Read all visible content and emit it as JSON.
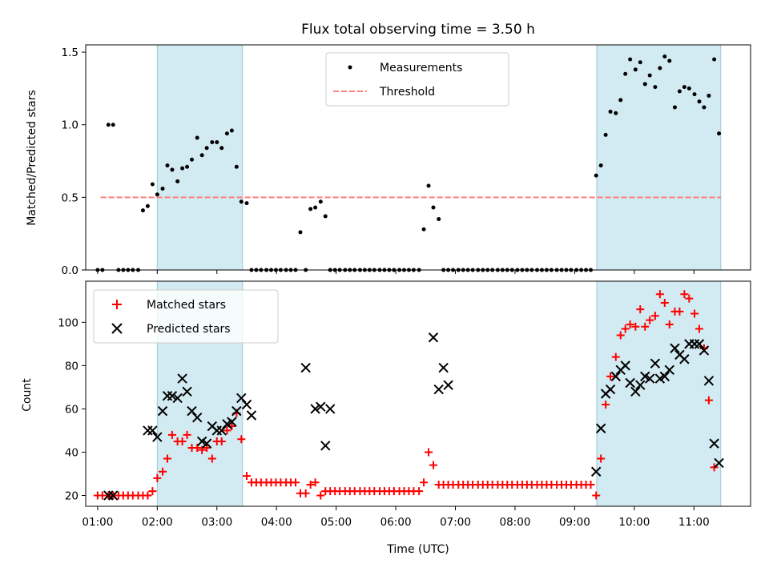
{
  "title": "Flux total observing time = 3.50 h",
  "chart_data": [
    {
      "type": "scatter",
      "name": "top",
      "ylabel": "Matched/Predicted stars",
      "xlabel": "",
      "xlim": [
        0.8,
        11.95
      ],
      "ylim": [
        0.0,
        1.55
      ],
      "yticks": [
        0.0,
        0.5,
        1.0,
        1.5
      ],
      "ytick_labels": [
        "0.0",
        "0.5",
        "1.0",
        "1.5"
      ],
      "legend_position": "top-center",
      "threshold": 0.5,
      "threshold_range": [
        1.05,
        11.45
      ],
      "shaded_regions": [
        [
          2.0,
          3.43
        ],
        [
          9.37,
          11.45
        ]
      ],
      "legend": [
        "Measurements",
        "Threshold"
      ],
      "x": [
        1.0,
        1.08,
        1.18,
        1.26,
        1.35,
        1.43,
        1.51,
        1.59,
        1.68,
        1.76,
        1.84,
        1.92,
        2.0,
        2.09,
        2.17,
        2.25,
        2.34,
        2.42,
        2.5,
        2.58,
        2.67,
        2.75,
        2.83,
        2.92,
        3.0,
        3.08,
        3.17,
        3.25,
        3.33,
        3.41,
        3.5,
        3.58,
        3.66,
        3.74,
        3.83,
        3.91,
        3.99,
        4.07,
        4.16,
        4.24,
        4.32,
        4.4,
        4.49,
        4.57,
        4.65,
        4.74,
        4.82,
        4.9,
        4.98,
        5.06,
        5.15,
        5.23,
        5.31,
        5.4,
        5.48,
        5.56,
        5.64,
        5.73,
        5.81,
        5.89,
        5.97,
        6.06,
        6.14,
        6.22,
        6.3,
        6.39,
        6.47,
        6.55,
        6.63,
        6.72,
        6.8,
        6.88,
        6.96,
        7.05,
        7.13,
        7.21,
        7.29,
        7.38,
        7.46,
        7.54,
        7.62,
        7.71,
        7.79,
        7.87,
        7.95,
        8.04,
        8.12,
        8.2,
        8.28,
        8.37,
        8.45,
        8.53,
        8.61,
        8.7,
        8.78,
        8.86,
        8.94,
        9.03,
        9.11,
        9.19,
        9.27,
        9.36,
        9.44,
        9.52,
        9.6,
        9.69,
        9.77,
        9.85,
        9.93,
        10.02,
        10.1,
        10.18,
        10.26,
        10.35,
        10.43,
        10.51,
        10.59,
        10.68,
        10.76,
        10.84,
        10.92,
        11.01,
        11.09,
        11.17,
        11.25,
        11.34,
        11.42
      ],
      "y": [
        0.0,
        0.0,
        1.0,
        1.0,
        0.0,
        0.0,
        0.0,
        0.0,
        0.0,
        0.41,
        0.44,
        0.59,
        0.52,
        0.56,
        0.72,
        0.69,
        0.61,
        0.7,
        0.71,
        0.76,
        0.91,
        0.79,
        0.84,
        0.88,
        0.88,
        0.84,
        0.94,
        0.96,
        0.71,
        0.47,
        0.46,
        0.0,
        0.0,
        0.0,
        0.0,
        0.0,
        0.0,
        0.0,
        0.0,
        0.0,
        0.0,
        0.26,
        0.0,
        0.42,
        0.43,
        0.47,
        0.37,
        0.0,
        0.0,
        0.0,
        0.0,
        0.0,
        0.0,
        0.0,
        0.0,
        0.0,
        0.0,
        0.0,
        0.0,
        0.0,
        0.0,
        0.0,
        0.0,
        0.0,
        0.0,
        0.0,
        0.28,
        0.58,
        0.43,
        0.35,
        0.0,
        0.0,
        0.0,
        0.0,
        0.0,
        0.0,
        0.0,
        0.0,
        0.0,
        0.0,
        0.0,
        0.0,
        0.0,
        0.0,
        0.0,
        0.0,
        0.0,
        0.0,
        0.0,
        0.0,
        0.0,
        0.0,
        0.0,
        0.0,
        0.0,
        0.0,
        0.0,
        0.0,
        0.0,
        0.0,
        0.0,
        0.65,
        0.72,
        0.93,
        1.09,
        1.08,
        1.17,
        1.35,
        1.45,
        1.38,
        1.43,
        1.28,
        1.34,
        1.26,
        1.39,
        1.47,
        1.44,
        1.12,
        1.23,
        1.26,
        1.25,
        1.21,
        1.16,
        1.12,
        1.2,
        1.45,
        0.94
      ]
    },
    {
      "type": "scatter",
      "name": "bottom",
      "ylabel": "Count",
      "xlabel": "Time (UTC)",
      "xlim": [
        0.8,
        11.95
      ],
      "ylim": [
        15.0,
        119.0
      ],
      "yticks": [
        20,
        40,
        60,
        80,
        100
      ],
      "ytick_labels": [
        "20",
        "40",
        "60",
        "80",
        "100"
      ],
      "xticks": [
        1,
        2,
        3,
        4,
        5,
        6,
        7,
        8,
        9,
        10,
        11
      ],
      "xtick_labels": [
        "01:00",
        "02:00",
        "03:00",
        "04:00",
        "05:00",
        "06:00",
        "07:00",
        "08:00",
        "09:00",
        "10:00",
        "11:00"
      ],
      "legend_position": "top-left",
      "shaded_regions": [
        [
          2.0,
          3.43
        ],
        [
          9.37,
          11.45
        ]
      ],
      "legend": [
        "Matched stars",
        "Predicted stars"
      ],
      "matched_x": [
        1.0,
        1.08,
        1.18,
        1.26,
        1.35,
        1.43,
        1.51,
        1.59,
        1.68,
        1.76,
        1.84,
        1.92,
        2.0,
        2.09,
        2.17,
        2.25,
        2.34,
        2.42,
        2.5,
        2.58,
        2.67,
        2.75,
        2.83,
        2.92,
        3.0,
        3.08,
        3.17,
        3.25,
        3.33,
        3.41,
        3.5,
        3.58,
        3.66,
        3.74,
        3.83,
        3.91,
        3.99,
        4.07,
        4.16,
        4.24,
        4.32,
        4.4,
        4.49,
        4.57,
        4.65,
        4.74,
        4.82,
        4.9,
        4.98,
        5.06,
        5.15,
        5.23,
        5.31,
        5.4,
        5.48,
        5.56,
        5.64,
        5.73,
        5.81,
        5.89,
        5.97,
        6.06,
        6.14,
        6.22,
        6.3,
        6.39,
        6.47,
        6.55,
        6.63,
        6.72,
        6.8,
        6.88,
        6.96,
        7.05,
        7.13,
        7.21,
        7.29,
        7.38,
        7.46,
        7.54,
        7.62,
        7.71,
        7.79,
        7.87,
        7.95,
        8.04,
        8.12,
        8.2,
        8.28,
        8.37,
        8.45,
        8.53,
        8.61,
        8.7,
        8.78,
        8.86,
        8.94,
        9.03,
        9.11,
        9.19,
        9.27,
        9.36,
        9.44,
        9.52,
        9.6,
        9.69,
        9.77,
        9.85,
        9.93,
        10.02,
        10.1,
        10.18,
        10.26,
        10.35,
        10.43,
        10.51,
        10.59,
        10.68,
        10.76,
        10.84,
        10.92,
        11.01,
        11.09,
        11.17,
        11.25,
        11.34,
        11.42
      ],
      "matched_y": [
        20,
        20,
        20,
        20,
        20,
        20,
        20,
        20,
        20,
        20,
        20,
        22,
        28,
        31,
        37,
        48,
        45,
        45,
        48,
        42,
        42,
        41,
        42,
        37,
        45,
        45,
        50,
        52,
        58,
        46,
        29,
        26,
        26,
        26,
        26,
        26,
        26,
        26,
        26,
        26,
        26,
        21,
        21,
        25,
        26,
        20,
        22,
        22,
        22,
        22,
        22,
        22,
        22,
        22,
        22,
        22,
        22,
        22,
        22,
        22,
        22,
        22,
        22,
        22,
        22,
        22,
        26,
        40,
        34,
        25,
        25,
        25,
        25,
        25,
        25,
        25,
        25,
        25,
        25,
        25,
        25,
        25,
        25,
        25,
        25,
        25,
        25,
        25,
        25,
        25,
        25,
        25,
        25,
        25,
        25,
        25,
        25,
        25,
        25,
        25,
        25,
        20,
        37,
        62,
        75,
        84,
        94,
        97,
        99,
        98,
        106,
        98,
        101,
        103,
        113,
        109,
        99,
        105,
        105,
        113,
        111,
        104,
        97,
        88,
        64,
        33
      ],
      "predicted_x": [
        1.18,
        1.26,
        1.84,
        1.92,
        2.0,
        2.09,
        2.17,
        2.25,
        2.34,
        2.42,
        2.5,
        2.58,
        2.67,
        2.75,
        2.83,
        2.92,
        3.0,
        3.08,
        3.17,
        3.25,
        3.33,
        3.41,
        3.5,
        3.58,
        4.49,
        4.65,
        4.74,
        4.82,
        4.9,
        6.63,
        6.72,
        6.8,
        6.88,
        9.36,
        9.44,
        9.52,
        9.6,
        9.69,
        9.77,
        9.85,
        9.93,
        10.02,
        10.1,
        10.18,
        10.26,
        10.35,
        10.43,
        10.51,
        10.59,
        10.68,
        10.76,
        10.84,
        10.92,
        11.01,
        11.09,
        11.17,
        11.25,
        11.34,
        11.42
      ],
      "predicted_y": [
        20,
        20,
        50,
        50,
        47,
        59,
        66,
        66,
        65,
        74,
        68,
        59,
        56,
        45,
        44,
        52,
        50,
        50,
        53,
        54,
        59,
        65,
        62,
        57,
        79,
        60,
        61,
        43,
        60,
        93,
        69,
        79,
        71,
        31,
        51,
        67,
        69,
        75,
        78,
        80,
        72,
        68,
        71,
        75,
        74,
        81,
        74,
        75,
        78,
        88,
        85,
        83,
        90,
        90,
        90,
        87,
        73,
        44,
        35
      ]
    }
  ]
}
